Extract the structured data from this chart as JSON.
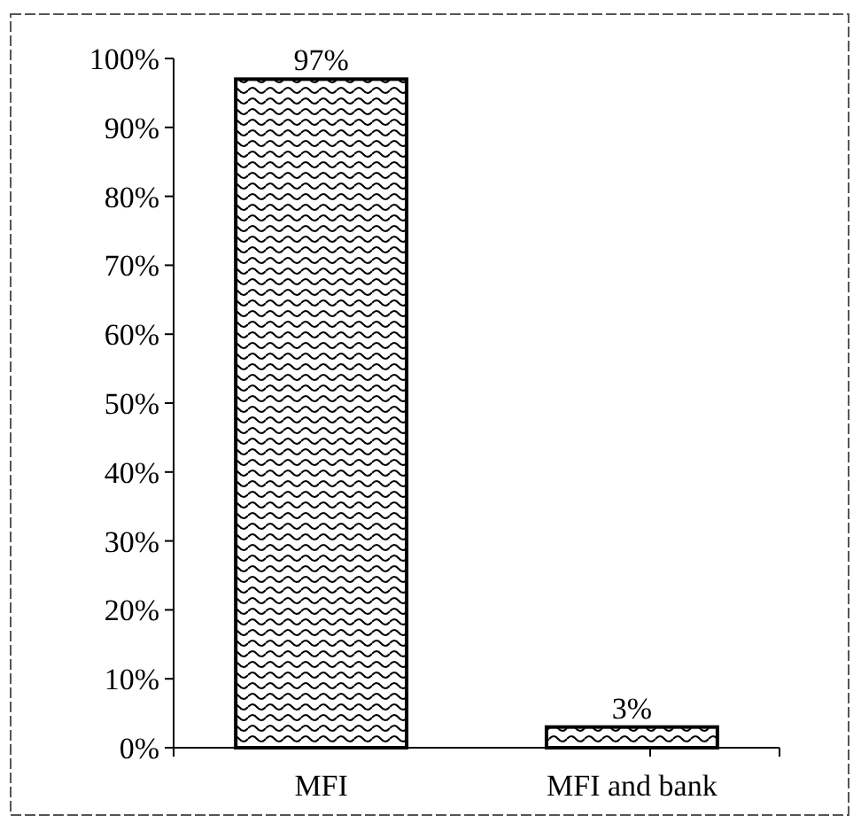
{
  "chart_data": {
    "type": "bar",
    "categories": [
      "MFI",
      "MFI and bank"
    ],
    "values": [
      97,
      3
    ],
    "value_labels": [
      "97%",
      "3%"
    ],
    "color": "#000000",
    "ylim": [
      0,
      100
    ],
    "yticks": [
      {
        "value": 0,
        "label": "0%"
      },
      {
        "value": 10,
        "label": "10%"
      },
      {
        "value": 20,
        "label": "20%"
      },
      {
        "value": 30,
        "label": "30%"
      },
      {
        "value": 40,
        "label": "40%"
      },
      {
        "value": 50,
        "label": "50%"
      },
      {
        "value": 60,
        "label": "60%"
      },
      {
        "value": 70,
        "label": "70%"
      },
      {
        "value": 80,
        "label": "80%"
      },
      {
        "value": 90,
        "label": "90%"
      },
      {
        "value": 100,
        "label": "100%"
      }
    ],
    "grid": false
  }
}
